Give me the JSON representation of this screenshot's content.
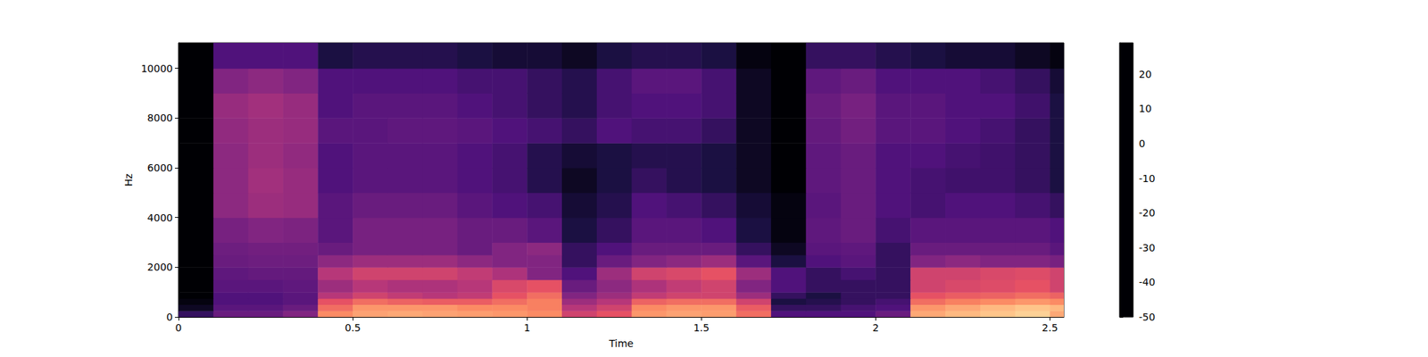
{
  "chart_data": {
    "type": "spectrogram",
    "x_label": "Time",
    "y_label": "Hz",
    "xlim": [
      0,
      2.54
    ],
    "xticks": [
      0,
      0.5,
      1,
      1.5,
      2,
      2.5
    ],
    "ylim": [
      0,
      11025
    ],
    "yticks": [
      0,
      2000,
      4000,
      6000,
      8000,
      10000
    ],
    "time_edges": [
      0,
      0.1,
      0.2,
      0.3,
      0.4,
      0.5,
      0.6,
      0.7,
      0.8,
      0.9,
      1.0,
      1.1,
      1.2,
      1.3,
      1.4,
      1.5,
      1.6,
      1.7,
      1.8,
      1.9,
      2.0,
      2.1,
      2.2,
      2.3,
      2.4,
      2.5,
      2.54
    ],
    "freq_edges": [
      0,
      250,
      500,
      750,
      1000,
      1500,
      2000,
      2500,
      3000,
      4000,
      5000,
      6000,
      7000,
      8000,
      9000,
      10000,
      11025
    ],
    "cells": [
      [
        -35,
        -25,
        -25,
        -20,
        10,
        14,
        15,
        14,
        13,
        12,
        10,
        -5,
        0,
        12,
        14,
        13,
        5,
        -30,
        -30,
        -30,
        -25,
        15,
        18,
        20,
        22,
        15
      ],
      [
        -45,
        -28,
        -28,
        -25,
        5,
        12,
        12,
        12,
        10,
        10,
        8,
        -10,
        -5,
        10,
        12,
        12,
        2,
        -35,
        -35,
        -32,
        -30,
        12,
        15,
        18,
        20,
        18
      ],
      [
        -48,
        -30,
        -30,
        -28,
        0,
        5,
        3,
        2,
        2,
        5,
        8,
        -15,
        -10,
        3,
        5,
        5,
        -5,
        -40,
        -38,
        -35,
        -32,
        5,
        8,
        10,
        12,
        10
      ],
      [
        -50,
        -30,
        -30,
        -28,
        -10,
        -5,
        -8,
        -10,
        -8,
        0,
        5,
        -20,
        -15,
        -8,
        -5,
        -5,
        -15,
        -35,
        -40,
        -35,
        -35,
        0,
        2,
        3,
        5,
        3
      ],
      [
        -50,
        -28,
        -28,
        -27,
        -15,
        -10,
        -12,
        -12,
        -10,
        -3,
        0,
        -25,
        -18,
        -12,
        -8,
        -5,
        -20,
        -30,
        -35,
        -35,
        -35,
        -5,
        -3,
        -2,
        0,
        -5
      ],
      [
        -50,
        -27,
        -26,
        -26,
        -10,
        -5,
        -5,
        -5,
        -8,
        -12,
        -20,
        -30,
        -15,
        -5,
        -3,
        0,
        -15,
        -30,
        -35,
        -32,
        -35,
        -5,
        -5,
        -3,
        -2,
        -5
      ],
      [
        -50,
        -25,
        -24,
        -24,
        -18,
        -15,
        -15,
        -15,
        -18,
        -20,
        -20,
        -35,
        -25,
        -20,
        -18,
        -15,
        -28,
        -40,
        -30,
        -28,
        -35,
        -20,
        -18,
        -20,
        -20,
        -22
      ],
      [
        -50,
        -24,
        -23,
        -23,
        -25,
        -22,
        -22,
        -22,
        -25,
        -20,
        -18,
        -35,
        -30,
        -25,
        -25,
        -25,
        -35,
        -45,
        -28,
        -27,
        -35,
        -25,
        -25,
        -25,
        -25,
        -28
      ],
      [
        -50,
        -22,
        -20,
        -21,
        -28,
        -22,
        -22,
        -22,
        -25,
        -25,
        -28,
        -40,
        -35,
        -28,
        -28,
        -30,
        -40,
        -48,
        -27,
        -25,
        -32,
        -28,
        -28,
        -28,
        -28,
        -30
      ],
      [
        -50,
        -18,
        -15,
        -16,
        -28,
        -25,
        -25,
        -25,
        -28,
        -30,
        -32,
        -42,
        -38,
        -30,
        -32,
        -35,
        -42,
        -48,
        -28,
        -25,
        -30,
        -32,
        -30,
        -30,
        -32,
        -35
      ],
      [
        -50,
        -18,
        -14,
        -16,
        -30,
        -28,
        -28,
        -28,
        -30,
        -32,
        -38,
        -45,
        -40,
        -35,
        -38,
        -40,
        -45,
        -50,
        -27,
        -25,
        -30,
        -32,
        -33,
        -33,
        -35,
        -40
      ],
      [
        -50,
        -18,
        -15,
        -17,
        -30,
        -28,
        -28,
        -28,
        -30,
        -32,
        -38,
        -42,
        -40,
        -38,
        -38,
        -40,
        -45,
        -50,
        -27,
        -25,
        -30,
        -30,
        -32,
        -33,
        -35,
        -40
      ],
      [
        -50,
        -17,
        -15,
        -16,
        -28,
        -28,
        -27,
        -27,
        -28,
        -30,
        -32,
        -35,
        -30,
        -32,
        -32,
        -35,
        -45,
        -50,
        -26,
        -23,
        -28,
        -28,
        -30,
        -32,
        -35,
        -40
      ],
      [
        -50,
        -16,
        -14,
        -16,
        -30,
        -28,
        -28,
        -28,
        -30,
        -32,
        -35,
        -38,
        -32,
        -30,
        -30,
        -32,
        -45,
        -50,
        -25,
        -22,
        -28,
        -28,
        -30,
        -30,
        -33,
        -40
      ],
      [
        -50,
        -20,
        -18,
        -20,
        -30,
        -30,
        -30,
        -30,
        -32,
        -32,
        -35,
        -38,
        -32,
        -28,
        -28,
        -32,
        -45,
        -50,
        -27,
        -25,
        -30,
        -30,
        -30,
        -32,
        -35,
        -42
      ],
      [
        -50,
        -30,
        -30,
        -30,
        -40,
        -38,
        -38,
        -38,
        -40,
        -42,
        -42,
        -45,
        -40,
        -38,
        -38,
        -40,
        -48,
        -50,
        -35,
        -35,
        -38,
        -40,
        -42,
        -42,
        -45,
        -48
      ]
    ],
    "color_range": [
      -50,
      29
    ],
    "color_ticks": [
      -50,
      -40,
      -30,
      -20,
      -10,
      0,
      10,
      20
    ]
  }
}
